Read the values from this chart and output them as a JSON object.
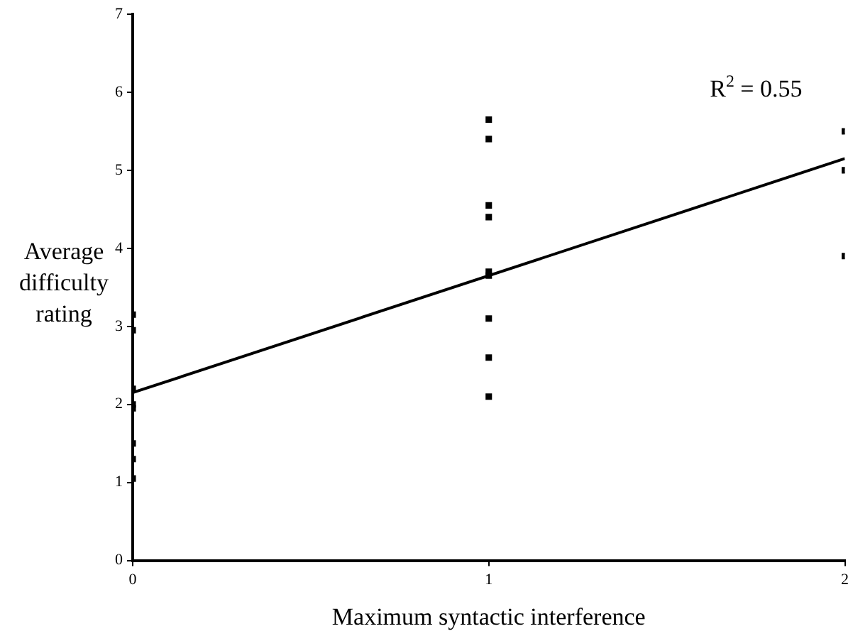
{
  "chart_data": {
    "type": "scatter",
    "xlabel": "Maximum syntactic interference",
    "ylabel": "Average difficulty rating",
    "annotations": [
      "R$^{2}$ = 0.55"
    ],
    "xlim": [
      0,
      2
    ],
    "xticks": [
      0,
      1,
      2
    ],
    "ylim": [
      0,
      7
    ],
    "yticks": [
      0,
      1,
      2,
      3,
      4,
      5,
      6,
      7
    ],
    "grid": false,
    "legend": false,
    "marker": "square",
    "series": [
      {
        "color": "#000000",
        "x": [
          0,
          0,
          0,
          0,
          0,
          0,
          0,
          0,
          1,
          1,
          1,
          1,
          1,
          1,
          1,
          1,
          1,
          2,
          2,
          2
        ],
        "values": [
          3.15,
          2.95,
          2.2,
          2.0,
          1.95,
          1.5,
          1.3,
          1.05,
          5.65,
          5.4,
          4.55,
          4.4,
          3.7,
          3.65,
          3.1,
          2.6,
          2.1,
          5.5,
          5.0,
          3.9
        ]
      },
      {
        "type": "line",
        "color": "#000000",
        "marker": "none",
        "x": [
          0,
          2
        ],
        "values": [
          2.15,
          5.15
        ]
      }
    ]
  }
}
